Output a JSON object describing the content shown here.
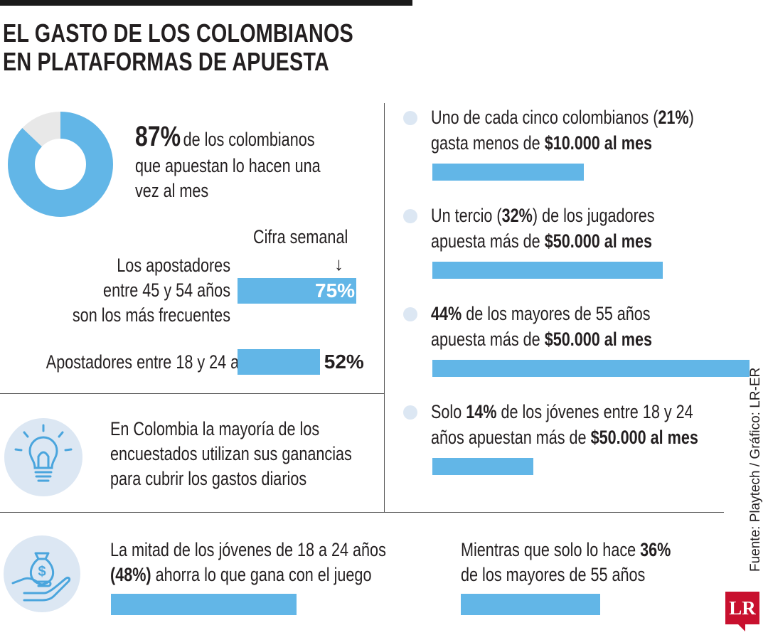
{
  "header": {
    "title_line1": "EL GASTO DE LOS COLOMBIANOS",
    "title_line2": "EN PLATAFORMAS DE APUESTA"
  },
  "donut": {
    "percent_label": "87%",
    "line1": "de los colombianos",
    "line2": "que apuestan lo hacen una",
    "line3": "vez al mes"
  },
  "weekly": {
    "heading": "Cifra semanal",
    "arrow": "↓",
    "bar1_line1": "Los apostadores",
    "bar1_line2": "entre 45 y 54 años",
    "bar1_line3": "son los más frecuentes",
    "bar1_value_label": "75%",
    "bar2_label": "Apostadores entre 18 y 24 años",
    "bar2_value_label": "52%"
  },
  "savings": {
    "line1": "En Colombia la mayoría de los",
    "line2": "encuestados utilizan sus ganancias",
    "line3": "para cubrir los gastos diarios"
  },
  "right_items": [
    {
      "pre": "Uno de cada cinco colombianos (",
      "bold": "21%",
      "post": ")",
      "line2_pre": "gasta menos de ",
      "line2_bold": "$10.000 al mes"
    },
    {
      "pre": "Un tercio (",
      "bold": "32%",
      "post": ") de los jugadores",
      "line2_pre": "apuesta más de ",
      "line2_bold": "$50.000 al mes"
    },
    {
      "pre": "",
      "bold": "44%",
      "post": " de los mayores de 55 años",
      "line2_pre": "apuesta más de ",
      "line2_bold": "$50.000 al mes"
    },
    {
      "pre": "Solo ",
      "bold": "14%",
      "post": " de los jóvenes entre 18 y 24",
      "line2_pre": "años apuestan más de ",
      "line2_bold": "$50.000 al mes"
    }
  ],
  "bottom": {
    "left_line1": "La mitad de los jóvenes de 18 a 24 años",
    "left_bold": "(48%)",
    "left_line2_post": " ahorra lo que gana con el juego",
    "right_line1_pre": "Mientras que solo lo hace ",
    "right_bold": "36%",
    "right_line2": "de los mayores de 55 años"
  },
  "source": "Fuente: Playtech / Gráfico: LR-ER",
  "logo_text": "LR",
  "icons": [
    "donut-chart-icon",
    "lightbulb-icon",
    "money-bag-hand-icon"
  ],
  "colors": {
    "bar": "#62b6e7",
    "donut_fill": "#62b6e7",
    "donut_rest": "#e8e8e8",
    "bullet": "#dce7f3",
    "logo": "#c8102e"
  },
  "chart_data": [
    {
      "type": "pie",
      "values": [
        87,
        13
      ]
    },
    {
      "type": "bar",
      "categories": [
        "Los apostadores entre 45 y 54 años son los más frecuentes",
        "Apostadores entre 18 y 24 años"
      ],
      "values": [
        75,
        52
      ]
    },
    {
      "type": "bar",
      "categories": [
        "gasta menos de $10.000 al mes",
        "apuesta más de $50.000 al mes",
        "44% de los mayores de 55 años",
        "Solo 14% de los jóvenes entre 18 y 24"
      ],
      "values": [
        21,
        32,
        44,
        14
      ]
    },
    {
      "type": "bar",
      "categories": [
        "La mitad de los jóvenes de 18 a 24 años (48%)",
        "de los mayores de 55 años"
      ],
      "values": [
        48,
        36
      ]
    }
  ]
}
